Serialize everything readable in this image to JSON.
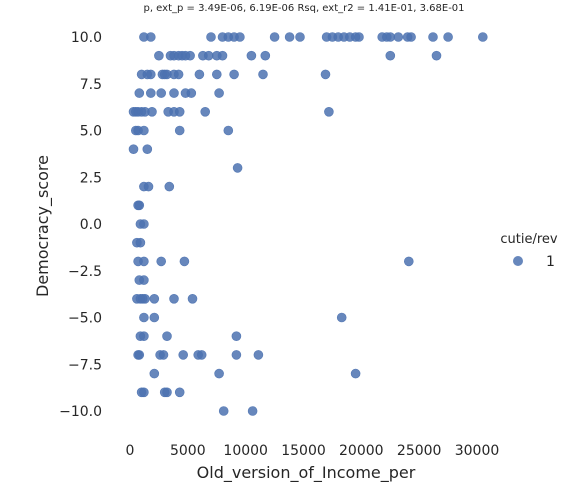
{
  "chart_data": {
    "type": "scatter",
    "title": "p, ext_p = 3.49E-06, 6.19E-06 Rsq, ext_r2 = 1.41E-01, 3.68E-01",
    "xlabel": "Old_version_of_Income_per",
    "ylabel": "Democracy_score",
    "xlim": [
      -1000,
      32000
    ],
    "ylim": [
      -11.2,
      10.5
    ],
    "xticks": [
      0,
      5000,
      10000,
      15000,
      20000,
      25000,
      30000
    ],
    "xtick_labels": [
      "0",
      "5000",
      "10000",
      "15000",
      "20000",
      "25000",
      "30000"
    ],
    "yticks": [
      -10,
      -7.5,
      -5,
      -2.5,
      0,
      2.5,
      5,
      7.5,
      10
    ],
    "ytick_labels": [
      "−10.0",
      "−7.5",
      "−5.0",
      "−2.5",
      "0.0",
      "2.5",
      "5.0",
      "7.5",
      "10.0"
    ],
    "grid": false,
    "legend_title": "cutie/rev",
    "legend_placement": "right",
    "color": "#4c72b0",
    "series": [
      {
        "name": "1",
        "points": [
          [
            1200,
            10
          ],
          [
            1800,
            10
          ],
          [
            7000,
            10
          ],
          [
            8000,
            10
          ],
          [
            8500,
            10
          ],
          [
            9000,
            10
          ],
          [
            9500,
            10
          ],
          [
            12500,
            10
          ],
          [
            13800,
            10
          ],
          [
            14700,
            10
          ],
          [
            17000,
            10
          ],
          [
            17500,
            10
          ],
          [
            18000,
            10
          ],
          [
            18500,
            10
          ],
          [
            19000,
            10
          ],
          [
            19500,
            10
          ],
          [
            19800,
            10
          ],
          [
            21800,
            10
          ],
          [
            22200,
            10
          ],
          [
            22500,
            10
          ],
          [
            23200,
            10
          ],
          [
            24000,
            10
          ],
          [
            24300,
            10
          ],
          [
            26200,
            10
          ],
          [
            27500,
            10
          ],
          [
            30500,
            10
          ],
          [
            2500,
            9
          ],
          [
            3500,
            9
          ],
          [
            3800,
            9
          ],
          [
            4200,
            9
          ],
          [
            4500,
            9
          ],
          [
            4800,
            9
          ],
          [
            5200,
            9
          ],
          [
            6300,
            9
          ],
          [
            6800,
            9
          ],
          [
            7500,
            9
          ],
          [
            8000,
            9
          ],
          [
            10500,
            9
          ],
          [
            11700,
            9
          ],
          [
            22500,
            9
          ],
          [
            26500,
            9
          ],
          [
            1000,
            8
          ],
          [
            1500,
            8
          ],
          [
            1800,
            8
          ],
          [
            2800,
            8
          ],
          [
            3000,
            8
          ],
          [
            3200,
            8
          ],
          [
            3800,
            8
          ],
          [
            4200,
            8
          ],
          [
            6000,
            8
          ],
          [
            7500,
            8
          ],
          [
            9000,
            8
          ],
          [
            11500,
            8
          ],
          [
            16900,
            8
          ],
          [
            800,
            7
          ],
          [
            1800,
            7
          ],
          [
            2700,
            7
          ],
          [
            3800,
            7
          ],
          [
            4800,
            7
          ],
          [
            5300,
            7
          ],
          [
            7700,
            7
          ],
          [
            300,
            6
          ],
          [
            500,
            6
          ],
          [
            700,
            6
          ],
          [
            1000,
            6
          ],
          [
            1300,
            6
          ],
          [
            1900,
            6
          ],
          [
            3300,
            6
          ],
          [
            3800,
            6
          ],
          [
            4300,
            6
          ],
          [
            6500,
            6
          ],
          [
            17200,
            6
          ],
          [
            500,
            5
          ],
          [
            700,
            5
          ],
          [
            1200,
            5
          ],
          [
            4300,
            5
          ],
          [
            8500,
            5
          ],
          [
            300,
            4
          ],
          [
            1500,
            4
          ],
          [
            9300,
            3
          ],
          [
            1200,
            2
          ],
          [
            1600,
            2
          ],
          [
            3400,
            2
          ],
          [
            800,
            1
          ],
          [
            700,
            1
          ],
          [
            900,
            0
          ],
          [
            1200,
            0
          ],
          [
            600,
            -1
          ],
          [
            900,
            -1
          ],
          [
            700,
            -2
          ],
          [
            1200,
            -2
          ],
          [
            2700,
            -2
          ],
          [
            4700,
            -2
          ],
          [
            24100,
            -2
          ],
          [
            800,
            -3
          ],
          [
            1200,
            -3
          ],
          [
            600,
            -4
          ],
          [
            900,
            -4
          ],
          [
            1100,
            -4
          ],
          [
            1300,
            -4
          ],
          [
            2100,
            -4
          ],
          [
            3800,
            -4
          ],
          [
            5400,
            -4
          ],
          [
            1200,
            -5
          ],
          [
            2100,
            -5
          ],
          [
            18300,
            -5
          ],
          [
            900,
            -6
          ],
          [
            1200,
            -6
          ],
          [
            3200,
            -6
          ],
          [
            9200,
            -6
          ],
          [
            700,
            -7
          ],
          [
            800,
            -7
          ],
          [
            2600,
            -7
          ],
          [
            2900,
            -7
          ],
          [
            4600,
            -7
          ],
          [
            5900,
            -7
          ],
          [
            6200,
            -7
          ],
          [
            9200,
            -7
          ],
          [
            11100,
            -7
          ],
          [
            2100,
            -8
          ],
          [
            7700,
            -8
          ],
          [
            19500,
            -8
          ],
          [
            1000,
            -9
          ],
          [
            1200,
            -9
          ],
          [
            3000,
            -9
          ],
          [
            3200,
            -9
          ],
          [
            4300,
            -9
          ],
          [
            8100,
            -10
          ],
          [
            10600,
            -10
          ]
        ]
      }
    ]
  }
}
